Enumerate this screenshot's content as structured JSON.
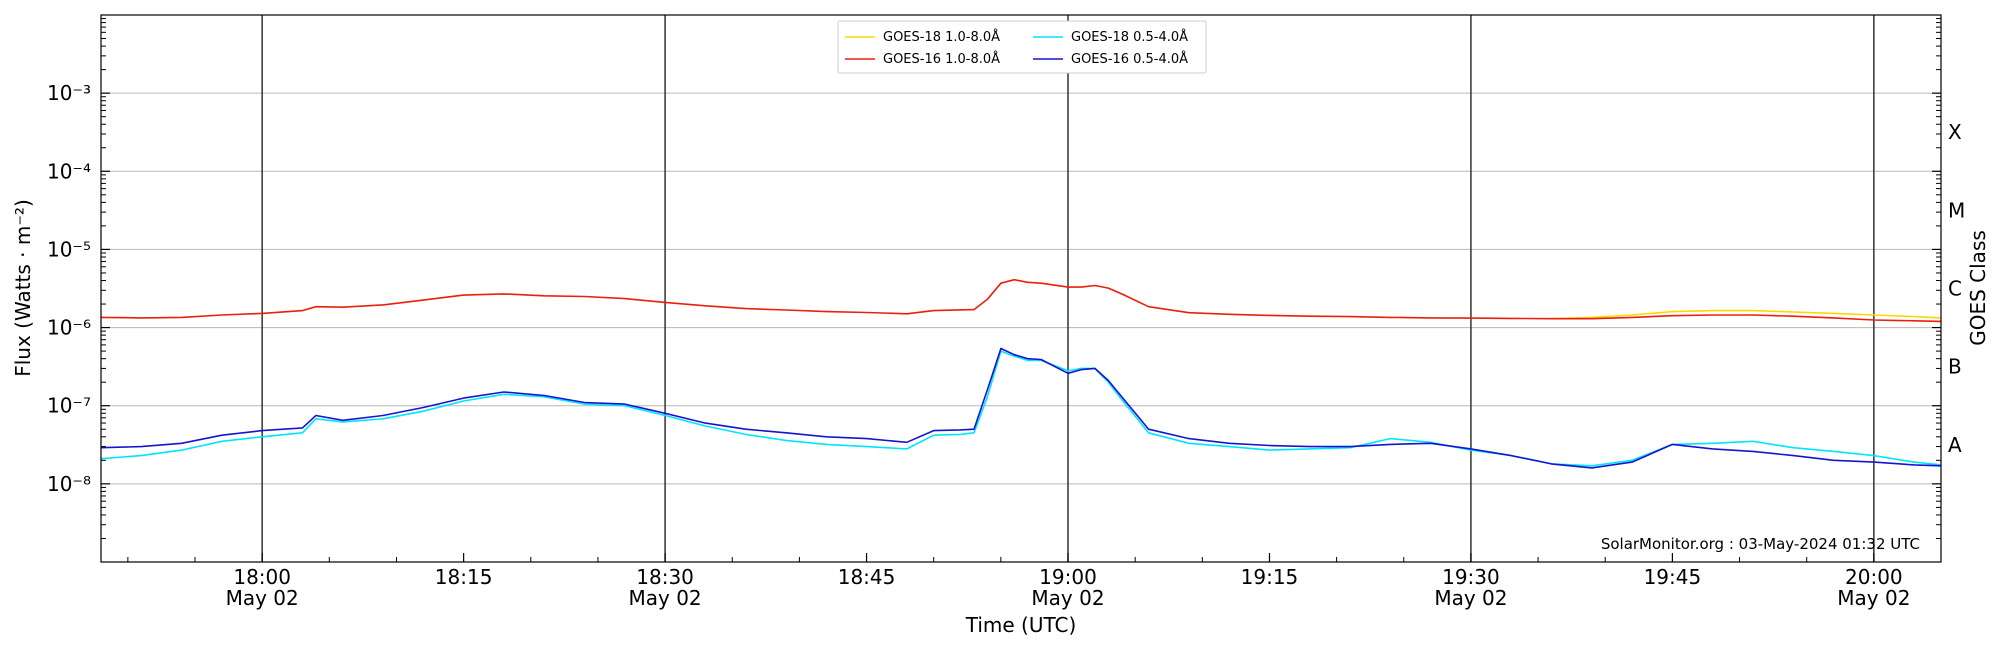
{
  "chart_data": {
    "type": "line",
    "y_scale": "log",
    "ylim": [
      1e-09,
      0.01
    ],
    "xlim": [
      "2024-05-02 17:48",
      "2024-05-02 20:05"
    ],
    "xlabel": "Time (UTC)",
    "ylabel": "Flux (Watts · m⁻²)",
    "ylabel_right": "GOES Class",
    "y_ticks": [
      {
        "value": 1e-08,
        "label": "10⁻⁸"
      },
      {
        "value": 1e-07,
        "label": "10⁻⁷"
      },
      {
        "value": 1e-06,
        "label": "10⁻⁶"
      },
      {
        "value": 1e-05,
        "label": "10⁻⁵"
      },
      {
        "value": 0.0001,
        "label": "10⁻⁴"
      },
      {
        "value": 0.001,
        "label": "10⁻³"
      }
    ],
    "goes_classes": [
      {
        "label": "A",
        "value": 1e-08
      },
      {
        "label": "B",
        "value": 1e-07
      },
      {
        "label": "C",
        "value": 1e-06
      },
      {
        "label": "M",
        "value": 1e-05
      },
      {
        "label": "X",
        "value": 0.0001
      }
    ],
    "x_ticks": [
      {
        "time": "18:00",
        "label": "18:00",
        "date": "May 02",
        "vline": true
      },
      {
        "time": "18:15",
        "label": "18:15",
        "date": "",
        "vline": false
      },
      {
        "time": "18:30",
        "label": "18:30",
        "date": "May 02",
        "vline": true
      },
      {
        "time": "18:45",
        "label": "18:45",
        "date": "",
        "vline": false
      },
      {
        "time": "19:00",
        "label": "19:00",
        "date": "May 02",
        "vline": true
      },
      {
        "time": "19:15",
        "label": "19:15",
        "date": "",
        "vline": false
      },
      {
        "time": "19:30",
        "label": "19:30",
        "date": "May 02",
        "vline": true
      },
      {
        "time": "19:45",
        "label": "19:45",
        "date": "",
        "vline": false
      },
      {
        "time": "20:00",
        "label": "20:00",
        "date": "May 02",
        "vline": true
      }
    ],
    "grid": "horizontal at decades; vertical lines at half-hours",
    "legend_position": "top-center",
    "annotation": "SolarMonitor.org : 03-May-2024 01:32 UTC",
    "series": [
      {
        "name": "GOES-18 1.0-8.0Å",
        "color": "#ffd700",
        "x": [
          "19:36",
          "19:39",
          "19:42",
          "19:45",
          "19:48",
          "19:51",
          "19:54",
          "19:57",
          "20:00",
          "20:03",
          "20:05"
        ],
        "y": [
          1.3e-06,
          1.35e-06,
          1.45e-06,
          1.6e-06,
          1.65e-06,
          1.65e-06,
          1.58e-06,
          1.52e-06,
          1.45e-06,
          1.38e-06,
          1.33e-06
        ]
      },
      {
        "name": "GOES-16 1.0-8.0Å",
        "color": "#e8200c",
        "x": [
          "17:48",
          "17:51",
          "17:54",
          "17:57",
          "18:00",
          "18:03",
          "18:04",
          "18:06",
          "18:09",
          "18:12",
          "18:15",
          "18:18",
          "18:21",
          "18:24",
          "18:27",
          "18:30",
          "18:33",
          "18:36",
          "18:39",
          "18:42",
          "18:45",
          "18:48",
          "18:50",
          "18:53",
          "18:54",
          "18:55",
          "18:56",
          "18:57",
          "18:58",
          "19:00",
          "19:01",
          "19:02",
          "19:03",
          "19:04",
          "19:06",
          "19:09",
          "19:12",
          "19:15",
          "19:18",
          "19:21",
          "19:24",
          "19:27",
          "19:30",
          "19:33",
          "19:36",
          "19:39",
          "19:42",
          "19:45",
          "19:48",
          "19:51",
          "19:54",
          "19:57",
          "20:00",
          "20:03",
          "20:05"
        ],
        "y": [
          1.35e-06,
          1.33e-06,
          1.35e-06,
          1.45e-06,
          1.52e-06,
          1.65e-06,
          1.85e-06,
          1.82e-06,
          1.95e-06,
          2.25e-06,
          2.6e-06,
          2.7e-06,
          2.55e-06,
          2.5e-06,
          2.35e-06,
          2.1e-06,
          1.9e-06,
          1.75e-06,
          1.68e-06,
          1.6e-06,
          1.56e-06,
          1.5e-06,
          1.65e-06,
          1.7e-06,
          2.3e-06,
          3.7e-06,
          4.1e-06,
          3.8e-06,
          3.7e-06,
          3.3e-06,
          3.3e-06,
          3.45e-06,
          3.2e-06,
          2.7e-06,
          1.85e-06,
          1.55e-06,
          1.48e-06,
          1.43e-06,
          1.4e-06,
          1.38e-06,
          1.35e-06,
          1.33e-06,
          1.32e-06,
          1.31e-06,
          1.3e-06,
          1.3e-06,
          1.35e-06,
          1.42e-06,
          1.45e-06,
          1.45e-06,
          1.4e-06,
          1.33e-06,
          1.25e-06,
          1.22e-06,
          1.2e-06
        ]
      },
      {
        "name": "GOES-18 0.5-4.0Å",
        "color": "#00e5ff",
        "x": [
          "17:48",
          "17:51",
          "17:54",
          "17:57",
          "18:00",
          "18:03",
          "18:04",
          "18:06",
          "18:09",
          "18:12",
          "18:15",
          "18:18",
          "18:21",
          "18:24",
          "18:27",
          "18:30",
          "18:33",
          "18:36",
          "18:39",
          "18:42",
          "18:45",
          "18:48",
          "18:50",
          "18:52",
          "18:53",
          "18:54",
          "18:55",
          "18:56",
          "18:57",
          "18:58",
          "19:00",
          "19:01",
          "19:02",
          "19:03",
          "19:04",
          "19:06",
          "19:09",
          "19:12",
          "19:15",
          "19:18",
          "19:21",
          "19:24",
          "19:27",
          "19:30",
          "19:33",
          "19:36",
          "19:39",
          "19:42",
          "19:45",
          "19:48",
          "19:51",
          "19:54",
          "19:57",
          "20:00",
          "20:03",
          "20:05"
        ],
        "y": [
          2.1e-08,
          2.3e-08,
          2.7e-08,
          3.5e-08,
          4e-08,
          4.5e-08,
          6.8e-08,
          6.2e-08,
          6.8e-08,
          8.5e-08,
          1.15e-07,
          1.4e-07,
          1.3e-07,
          1.05e-07,
          1e-07,
          7.5e-08,
          5.5e-08,
          4.3e-08,
          3.6e-08,
          3.2e-08,
          3e-08,
          2.8e-08,
          4.2e-08,
          4.3e-08,
          4.5e-08,
          1.3e-07,
          5e-07,
          4.3e-07,
          3.8e-07,
          3.8e-07,
          2.8e-07,
          3e-07,
          3e-07,
          2e-07,
          1.2e-07,
          4.5e-08,
          3.3e-08,
          3e-08,
          2.7e-08,
          2.8e-08,
          2.9e-08,
          3.8e-08,
          3.4e-08,
          2.7e-08,
          2.3e-08,
          1.8e-08,
          1.7e-08,
          2e-08,
          3.2e-08,
          3.3e-08,
          3.5e-08,
          2.9e-08,
          2.6e-08,
          2.3e-08,
          1.9e-08,
          1.75e-08
        ]
      },
      {
        "name": "GOES-16 0.5-4.0Å",
        "color": "#1515d0",
        "x": [
          "17:48",
          "17:51",
          "17:54",
          "17:57",
          "18:00",
          "18:03",
          "18:04",
          "18:06",
          "18:09",
          "18:12",
          "18:15",
          "18:18",
          "18:21",
          "18:24",
          "18:27",
          "18:30",
          "18:33",
          "18:36",
          "18:39",
          "18:42",
          "18:45",
          "18:48",
          "18:50",
          "18:52",
          "18:53",
          "18:54",
          "18:55",
          "18:56",
          "18:57",
          "18:58",
          "19:00",
          "19:01",
          "19:02",
          "19:03",
          "19:04",
          "19:06",
          "19:09",
          "19:12",
          "19:15",
          "19:18",
          "19:21",
          "19:24",
          "19:27",
          "19:30",
          "19:33",
          "19:36",
          "19:39",
          "19:42",
          "19:45",
          "19:48",
          "19:51",
          "19:54",
          "19:57",
          "20:00",
          "20:03",
          "20:05"
        ],
        "y": [
          2.9e-08,
          3e-08,
          3.3e-08,
          4.2e-08,
          4.8e-08,
          5.2e-08,
          7.5e-08,
          6.5e-08,
          7.5e-08,
          9.5e-08,
          1.25e-07,
          1.5e-07,
          1.35e-07,
          1.1e-07,
          1.05e-07,
          8e-08,
          6e-08,
          5e-08,
          4.5e-08,
          4e-08,
          3.8e-08,
          3.4e-08,
          4.8e-08,
          4.9e-08,
          5e-08,
          1.6e-07,
          5.4e-07,
          4.5e-07,
          4e-07,
          3.9e-07,
          2.6e-07,
          2.9e-07,
          3e-07,
          2.1e-07,
          1.3e-07,
          5e-08,
          3.8e-08,
          3.3e-08,
          3.1e-08,
          3e-08,
          3e-08,
          3.2e-08,
          3.3e-08,
          2.8e-08,
          2.3e-08,
          1.8e-08,
          1.6e-08,
          1.9e-08,
          3.2e-08,
          2.8e-08,
          2.6e-08,
          2.3e-08,
          2e-08,
          1.9e-08,
          1.75e-08,
          1.7e-08
        ]
      }
    ]
  }
}
